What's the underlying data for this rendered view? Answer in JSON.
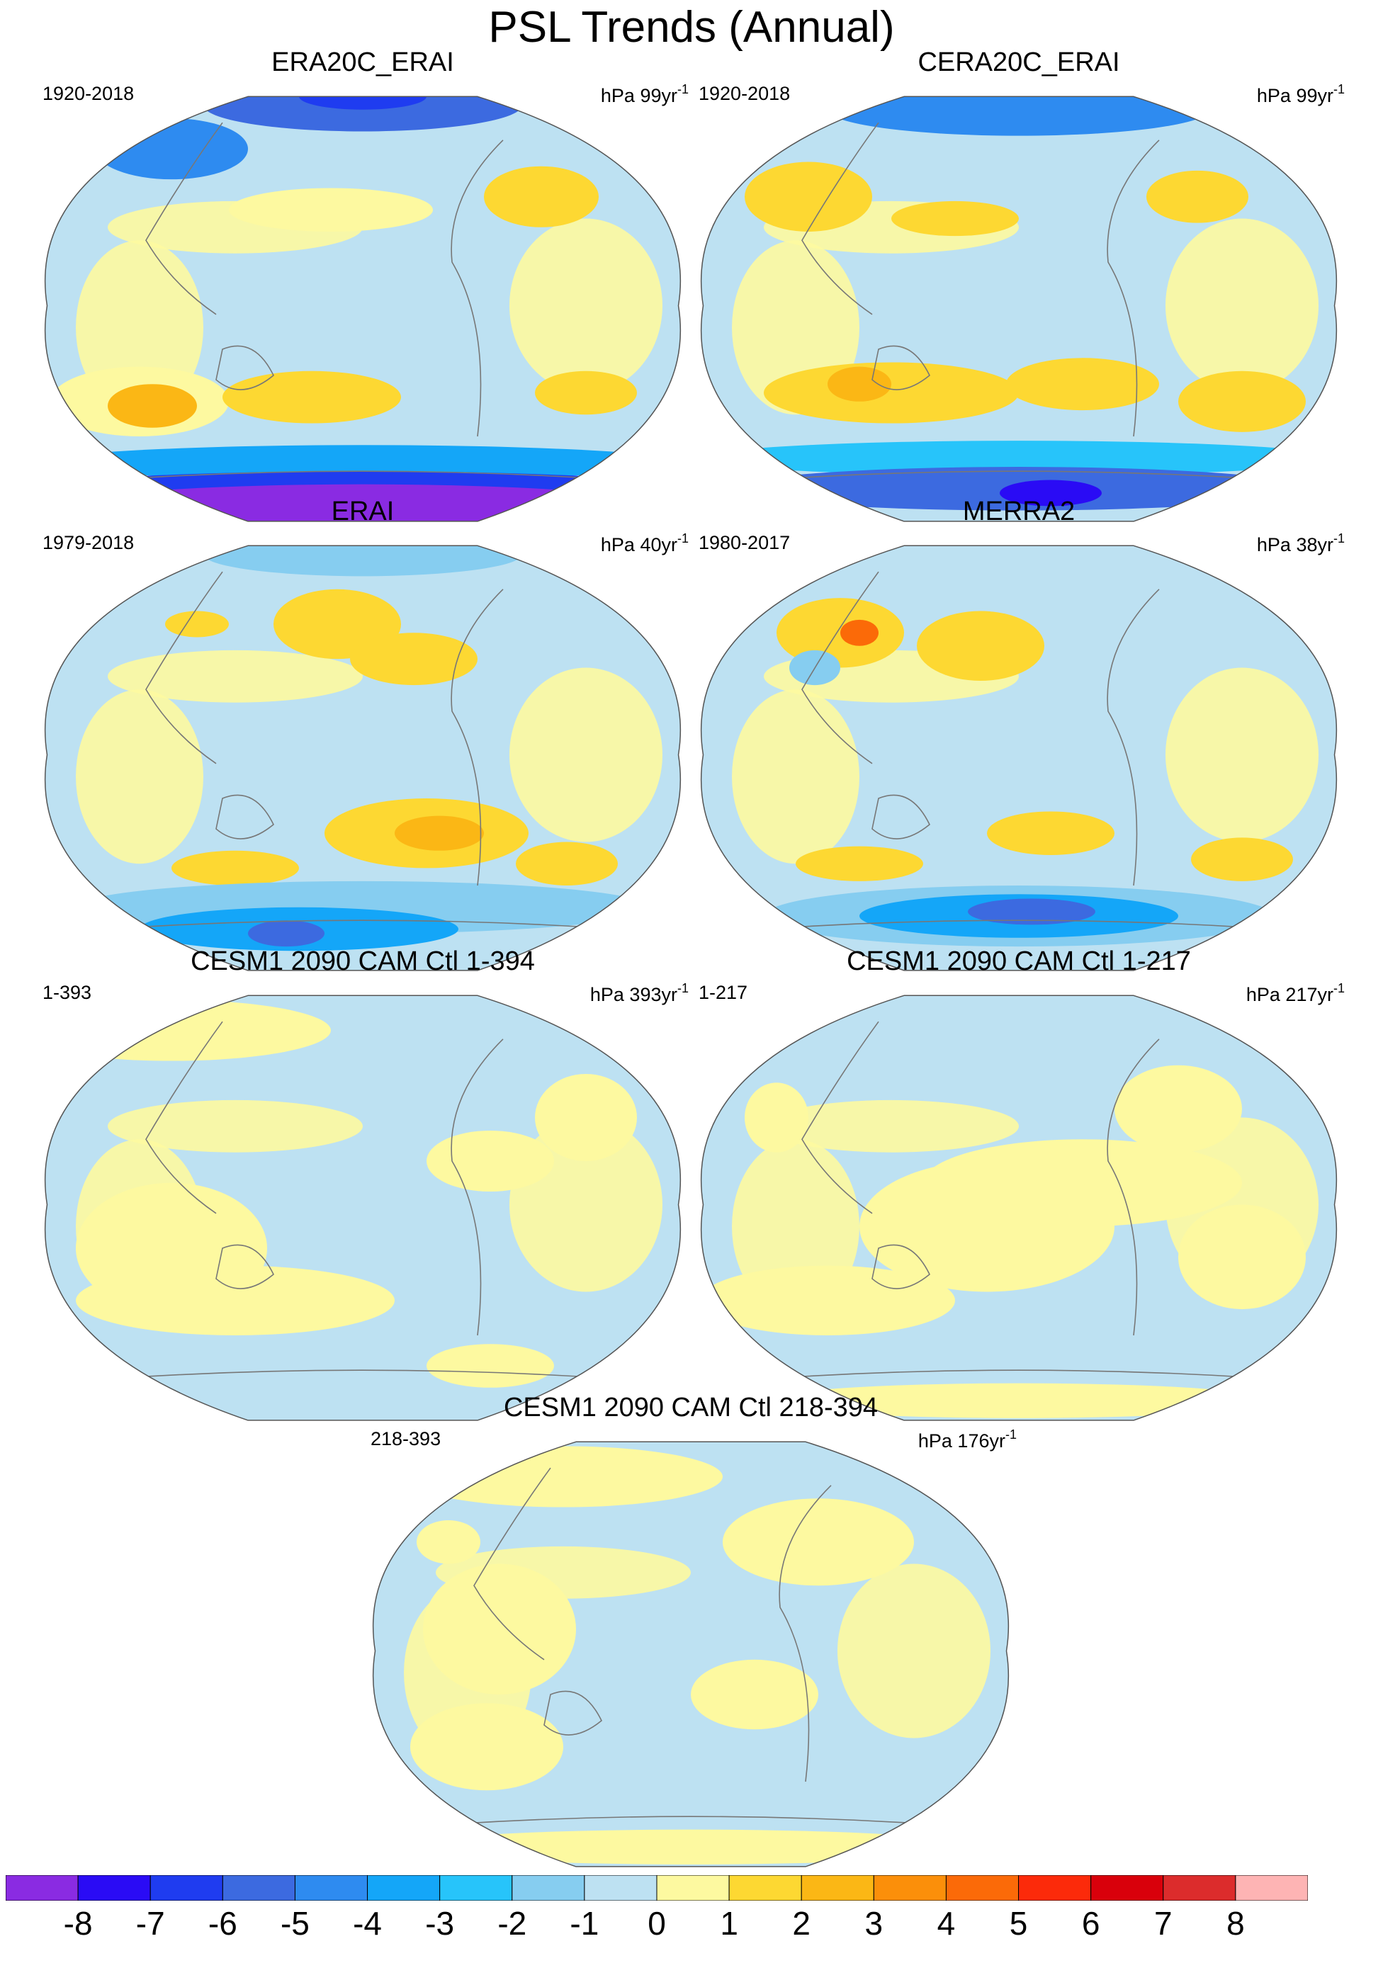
{
  "title": "PSL Trends (Annual)",
  "panels": [
    {
      "id": "p1",
      "title": "ERA20C_ERAI",
      "period": "1920-2018",
      "units_prefix": "hPa 99yr",
      "units_exp": "-1",
      "style": "a"
    },
    {
      "id": "p2",
      "title": "CERA20C_ERAI",
      "period": "1920-2018",
      "units_prefix": "hPa 99yr",
      "units_exp": "-1",
      "style": "b"
    },
    {
      "id": "p3",
      "title": "ERAI",
      "period": "1979-2018",
      "units_prefix": "hPa 40yr",
      "units_exp": "-1",
      "style": "c"
    },
    {
      "id": "p4",
      "title": "MERRA2",
      "period": "1980-2017",
      "units_prefix": "hPa 38yr",
      "units_exp": "-1",
      "style": "d"
    },
    {
      "id": "p5",
      "title": "CESM1 2090 CAM Ctl 1-394",
      "period": "1-393",
      "units_prefix": "hPa 393yr",
      "units_exp": "-1",
      "style": "e"
    },
    {
      "id": "p6",
      "title": "CESM1 2090 CAM Ctl 1-217",
      "period": "1-217",
      "units_prefix": "hPa 217yr",
      "units_exp": "-1",
      "style": "f"
    },
    {
      "id": "p7",
      "title": "CESM1 2090 CAM Ctl 218-394",
      "period": "218-393",
      "units_prefix": "hPa 176yr",
      "units_exp": "-1",
      "style": "g"
    }
  ],
  "colorbar": {
    "labels": [
      "-8",
      "-7",
      "-6",
      "-5",
      "-4",
      "-3",
      "-2",
      "-1",
      "0",
      "1",
      "2",
      "3",
      "4",
      "5",
      "6",
      "7",
      "8"
    ],
    "colors": [
      "#8a2be2",
      "#2a0bf5",
      "#1f3cf0",
      "#3c6ae0",
      "#2e8bf0",
      "#14a6f8",
      "#27c4fa",
      "#86cdf0",
      "#bde1f2",
      "#fdf9a0",
      "#fdd832",
      "#fbb715",
      "#fb8f0a",
      "#fb6a08",
      "#fc2a0a",
      "#d9000b",
      "#dc2c2c",
      "#feb4b4"
    ]
  }
}
